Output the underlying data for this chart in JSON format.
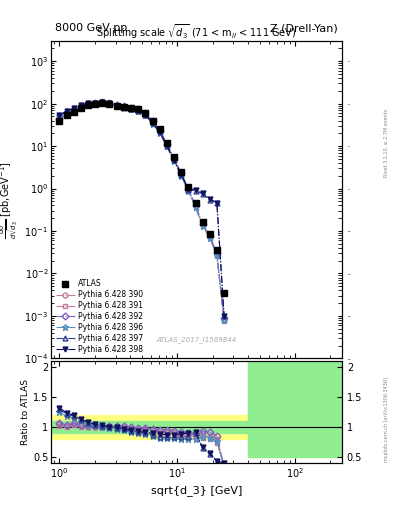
{
  "title_left": "8000 GeV pp",
  "title_right": "Z (Drell-Yan)",
  "plot_title": "Splitting scale $\\sqrt{d_3}$ (71 < m$_{ll}$ < 111 GeV)",
  "ylabel_ratio": "Ratio to ATLAS",
  "xlabel": "sqrt{d_3} [GeV]",
  "watermark": "ATLAS_2017_I1589844",
  "atlas_label": "ATLAS",
  "x_atlas": [
    1.0,
    1.15,
    1.32,
    1.52,
    1.75,
    2.01,
    2.31,
    2.66,
    3.06,
    3.52,
    4.05,
    4.66,
    5.36,
    6.17,
    7.09,
    8.16,
    9.39,
    10.8,
    12.4,
    14.3,
    16.4,
    18.9,
    21.7,
    25.0
  ],
  "y_atlas": [
    40.0,
    55.0,
    65.0,
    80.0,
    95.0,
    100.0,
    105.0,
    100.0,
    90.0,
    85.0,
    80.0,
    75.0,
    60.0,
    40.0,
    25.0,
    12.0,
    5.5,
    2.5,
    1.1,
    0.45,
    0.16,
    0.085,
    0.035,
    0.0035
  ],
  "series": [
    {
      "label": "Pythia 6.428 390",
      "color": "#c878a0",
      "linestyle": "-.",
      "marker": "o",
      "markerfacecolor": "none",
      "x": [
        1.0,
        1.15,
        1.32,
        1.52,
        1.75,
        2.01,
        2.31,
        2.66,
        3.06,
        3.52,
        4.05,
        4.66,
        5.36,
        6.17,
        7.09,
        8.16,
        9.39,
        10.8,
        12.4,
        14.3,
        16.4,
        18.9,
        21.7,
        25.0
      ],
      "y": [
        42.0,
        56.0,
        68.0,
        82.0,
        96.0,
        101.0,
        106.0,
        101.0,
        91.0,
        85.0,
        79.0,
        73.0,
        58.0,
        38.0,
        23.0,
        11.0,
        5.0,
        2.2,
        0.95,
        0.38,
        0.14,
        0.072,
        0.028,
        0.0008
      ],
      "ratio": [
        1.05,
        1.02,
        1.05,
        1.03,
        1.01,
        1.01,
        1.01,
        1.01,
        1.01,
        1.0,
        0.99,
        0.97,
        0.97,
        0.95,
        0.92,
        0.92,
        0.91,
        0.88,
        0.86,
        0.84,
        0.88,
        0.85,
        0.8,
        0.23
      ]
    },
    {
      "label": "Pythia 6.428 391",
      "color": "#c878a0",
      "linestyle": "-.",
      "marker": "s",
      "markerfacecolor": "none",
      "x": [
        1.0,
        1.15,
        1.32,
        1.52,
        1.75,
        2.01,
        2.31,
        2.66,
        3.06,
        3.52,
        4.05,
        4.66,
        5.36,
        6.17,
        7.09,
        8.16,
        9.39,
        10.8,
        12.4,
        14.3,
        16.4,
        18.9,
        21.7,
        25.0
      ],
      "y": [
        41.0,
        55.0,
        67.0,
        81.0,
        95.0,
        100.0,
        105.0,
        100.0,
        90.0,
        84.0,
        78.0,
        72.0,
        57.0,
        37.0,
        22.0,
        10.5,
        4.8,
        2.1,
        0.9,
        0.36,
        0.13,
        0.068,
        0.026,
        0.00075
      ],
      "ratio": [
        1.02,
        1.0,
        1.03,
        1.01,
        1.0,
        1.0,
        1.0,
        1.0,
        1.0,
        0.99,
        0.975,
        0.96,
        0.95,
        0.925,
        0.88,
        0.875,
        0.873,
        0.84,
        0.818,
        0.8,
        0.813,
        0.8,
        0.743,
        0.214
      ]
    },
    {
      "label": "Pythia 6.428 392",
      "color": "#8060c0",
      "linestyle": "-.",
      "marker": "D",
      "markerfacecolor": "none",
      "x": [
        1.0,
        1.15,
        1.32,
        1.52,
        1.75,
        2.01,
        2.31,
        2.66,
        3.06,
        3.52,
        4.05,
        4.66,
        5.36,
        6.17,
        7.09,
        8.16,
        9.39,
        10.8,
        12.4,
        14.3,
        16.4,
        18.9,
        21.7,
        25.0
      ],
      "y": [
        43.0,
        57.0,
        69.0,
        83.0,
        97.0,
        102.0,
        107.0,
        102.0,
        92.0,
        86.0,
        80.0,
        74.0,
        59.0,
        39.0,
        24.0,
        11.5,
        5.2,
        2.3,
        1.0,
        0.4,
        0.15,
        0.078,
        0.03,
        0.0009
      ],
      "ratio": [
        1.075,
        1.036,
        1.062,
        1.038,
        1.021,
        1.02,
        1.019,
        1.02,
        1.022,
        1.012,
        1.0,
        0.987,
        0.983,
        0.975,
        0.96,
        0.958,
        0.945,
        0.92,
        0.909,
        0.889,
        0.9375,
        0.918,
        0.857,
        0.257
      ]
    },
    {
      "label": "Pythia 6.428 396",
      "color": "#5090c0",
      "linestyle": "-.",
      "marker": "*",
      "markerfacecolor": "none",
      "x": [
        1.0,
        1.15,
        1.32,
        1.52,
        1.75,
        2.01,
        2.31,
        2.66,
        3.06,
        3.52,
        4.05,
        4.66,
        5.36,
        6.17,
        7.09,
        8.16,
        9.39,
        10.8,
        12.4,
        14.3,
        16.4,
        18.9,
        21.7,
        25.0
      ],
      "y": [
        50.0,
        65.0,
        75.0,
        88.0,
        100.0,
        103.0,
        106.0,
        99.0,
        88.0,
        81.0,
        74.0,
        68.0,
        53.0,
        34.0,
        20.5,
        9.8,
        4.5,
        2.0,
        0.88,
        0.36,
        0.135,
        0.07,
        0.027,
        0.0008
      ],
      "ratio": [
        1.25,
        1.18,
        1.154,
        1.1,
        1.053,
        1.03,
        1.009,
        0.99,
        0.978,
        0.953,
        0.925,
        0.907,
        0.883,
        0.85,
        0.82,
        0.817,
        0.818,
        0.8,
        0.8,
        0.8,
        0.844,
        0.824,
        0.771,
        0.229
      ]
    },
    {
      "label": "Pythia 6.428 397",
      "color": "#304090",
      "linestyle": "-.",
      "marker": "^",
      "markerfacecolor": "none",
      "x": [
        1.0,
        1.15,
        1.32,
        1.52,
        1.75,
        2.01,
        2.31,
        2.66,
        3.06,
        3.52,
        4.05,
        4.66,
        5.36,
        6.17,
        7.09,
        8.16,
        9.39,
        10.8,
        12.4,
        14.3,
        16.4,
        18.9,
        21.7,
        25.0
      ],
      "y": [
        52.0,
        67.0,
        77.0,
        90.0,
        102.0,
        104.0,
        107.0,
        100.0,
        89.0,
        82.0,
        75.0,
        69.0,
        54.0,
        35.0,
        21.0,
        10.0,
        4.6,
        2.1,
        0.93,
        0.9,
        0.75,
        0.55,
        0.45,
        0.001
      ],
      "ratio": [
        1.3,
        1.218,
        1.185,
        1.125,
        1.074,
        1.04,
        1.019,
        1.0,
        0.989,
        0.965,
        0.9375,
        0.92,
        0.9,
        0.875,
        0.84,
        0.833,
        0.836,
        0.84,
        0.845,
        0.9,
        0.65,
        0.55,
        0.42,
        0.4
      ]
    },
    {
      "label": "Pythia 6.428 398",
      "color": "#101060",
      "linestyle": "-.",
      "marker": "v",
      "markerfacecolor": "#101060",
      "x": [
        1.0,
        1.15,
        1.32,
        1.52,
        1.75,
        2.01,
        2.31,
        2.66,
        3.06,
        3.52,
        4.05,
        4.66,
        5.36,
        6.17,
        7.09,
        8.16,
        9.39,
        10.8,
        12.4,
        14.3,
        16.4,
        18.9,
        21.7,
        25.0
      ],
      "y": [
        53.0,
        68.0,
        78.0,
        91.0,
        103.0,
        105.0,
        108.0,
        101.0,
        90.0,
        83.0,
        76.0,
        70.0,
        55.0,
        36.0,
        22.0,
        10.5,
        4.8,
        2.2,
        1.0,
        0.95,
        0.78,
        0.57,
        0.47,
        0.001
      ],
      "ratio": [
        1.325,
        1.236,
        1.2,
        1.138,
        1.084,
        1.05,
        1.029,
        1.01,
        1.0,
        0.976,
        0.95,
        0.933,
        0.917,
        0.9,
        0.88,
        0.875,
        0.873,
        0.88,
        0.909,
        0.92,
        0.67,
        0.57,
        0.44,
        0.41
      ]
    }
  ],
  "xlim": [
    0.85,
    250.0
  ],
  "ylim_main": [
    0.0001,
    3000.0
  ],
  "ylim_ratio": [
    0.4,
    2.1
  ],
  "ratio_yticks": [
    0.5,
    1.0,
    1.5,
    2.0
  ]
}
